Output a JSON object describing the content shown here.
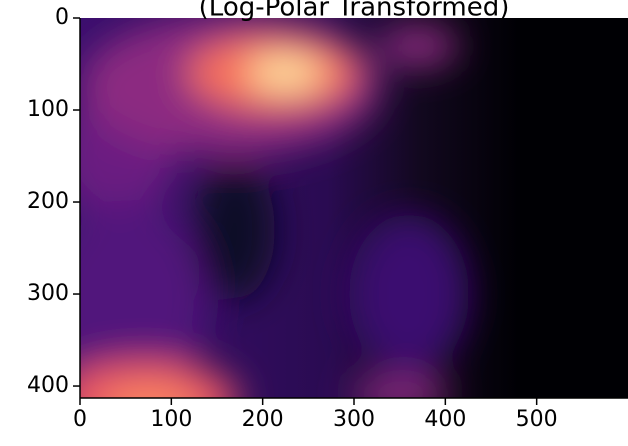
{
  "chart_data": {
    "type": "image",
    "title": "(Log-Polar Transformed)",
    "colormap": "magma",
    "xlim": [
      0,
      600
    ],
    "xticks": [
      0,
      100,
      200,
      300,
      400,
      500
    ],
    "ylim": [
      0,
      413
    ],
    "yticks": [
      0,
      100,
      200,
      300,
      400
    ],
    "y_inverted": true
  }
}
